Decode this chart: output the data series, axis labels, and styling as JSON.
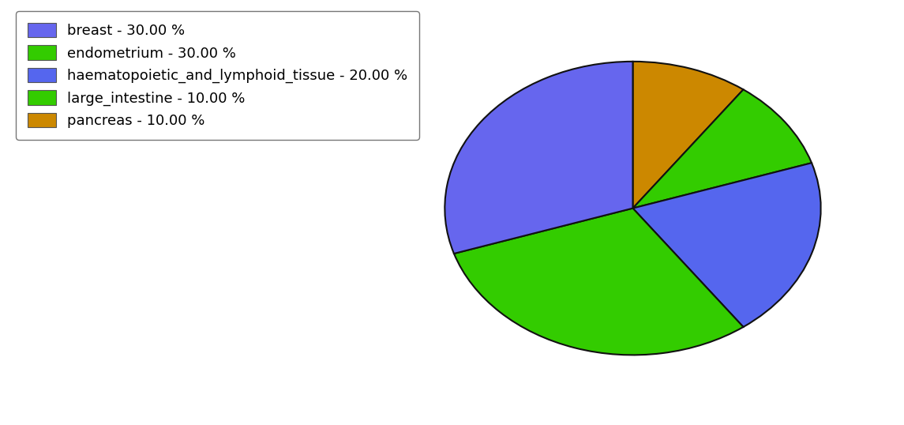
{
  "ordered_sizes": [
    10,
    10,
    20,
    30,
    30
  ],
  "ordered_colors": [
    "#cc8800",
    "#33cc00",
    "#5566ee",
    "#33cc00",
    "#6666ee"
  ],
  "ordered_labels": [
    "pancreas",
    "large_intestine",
    "haematopoietic_and_lymphoid_tissue",
    "endometrium",
    "breast"
  ],
  "startangle": 90,
  "background_color": "#ffffff",
  "legend_fontsize": 13,
  "edgecolor": "#111111",
  "linewidth": 1.5,
  "legend_colors": {
    "breast": "#6666ee",
    "endometrium": "#33cc00",
    "haematopoietic_and_lymphoid_tissue": "#5566ee",
    "large_intestine": "#33cc00",
    "pancreas": "#cc8800"
  },
  "legend_order": [
    "breast",
    "endometrium",
    "haematopoietic_and_lymphoid_tissue",
    "large_intestine",
    "pancreas"
  ],
  "legend_labels_map": {
    "breast": "breast - 30.00 %",
    "endometrium": "endometrium - 30.00 %",
    "haematopoietic_and_lymphoid_tissue": "haematopoietic_and_lymphoid_tissue - 20.00 %",
    "large_intestine": "large_intestine - 10.00 %",
    "pancreas": "pancreas - 10.00 %"
  }
}
